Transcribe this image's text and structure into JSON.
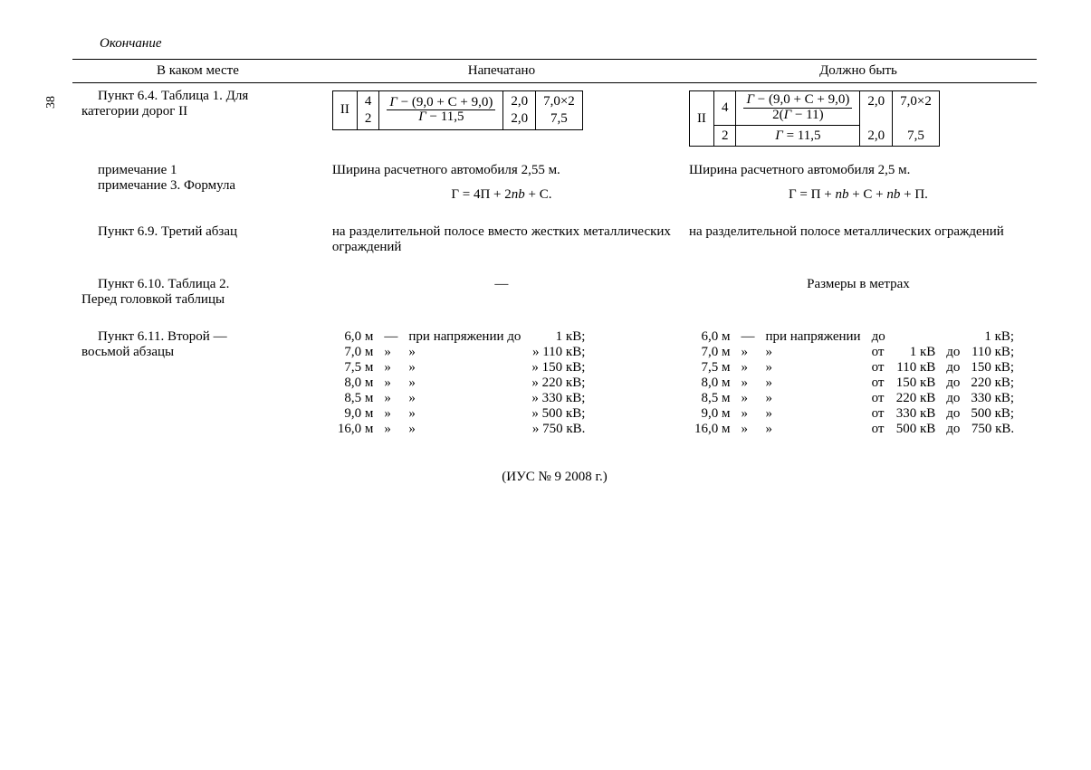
{
  "page_number": "38",
  "heading": "Окончание",
  "columns": {
    "where": "В каком месте",
    "printed": "Напечатано",
    "should": "Должно быть"
  },
  "row1": {
    "where_line1": "Пункт 6.4. Таблица 1. Для",
    "where_line2": "категории дорог II",
    "printed_mini": {
      "c1": "II",
      "c2t": "4",
      "c2b": "2",
      "frac_num": "Г − (9,0 + С + 9,0)",
      "frac_den": "Г − 11,5",
      "c4t": "2,0",
      "c4b": "2,0",
      "c5t": "7,0×2",
      "c5b": "7,5"
    },
    "should_mini": {
      "c1": "II",
      "c2t": "4",
      "c2b": "2",
      "frac_num": "Г − (9,0 + С + 9,0)",
      "frac_den": "2(Г − 11)",
      "r2_formula": "Г = 11,5",
      "c4t": "2,0",
      "c4b": "2,0",
      "c5t": "7,0×2",
      "c5b": "7,5"
    }
  },
  "row1b": {
    "where_l1": "примечание 1",
    "where_l2": "примечание 3. Формула",
    "printed_text": "Ширина расчетного автомобиля 2,55 м.",
    "printed_formula": "Г = 4П + 2nb + С.",
    "should_text": "Ширина расчетного автомобиля 2,5 м.",
    "should_formula": "Г = П + nb + С + nb + П."
  },
  "row2": {
    "where": "Пункт 6.9. Третий абзац",
    "printed": "на разделительной полосе вместо жест­ких металлических ограждений",
    "should": "на разделительной полосе металличес­ких ограждений"
  },
  "row3": {
    "where_l1": "Пункт 6.10. Таблица 2.",
    "where_l2": "Перед головкой таблицы",
    "printed": "—",
    "should": "Размеры в метрах"
  },
  "row4": {
    "where_l1": "Пункт 6.11. Второй —",
    "where_l2": "восьмой абзацы",
    "printed": [
      {
        "m": "6,0 м",
        "dash": "—",
        "pri": "при напряжении до",
        "v": "1 кВ;"
      },
      {
        "m": "7,0 м",
        "dash": "»",
        "pri": "»",
        "v": "» 110 кВ;"
      },
      {
        "m": "7,5 м",
        "dash": "»",
        "pri": "»",
        "v": "» 150 кВ;"
      },
      {
        "m": "8,0 м",
        "dash": "»",
        "pri": "»",
        "v": "» 220 кВ;"
      },
      {
        "m": "8,5 м",
        "dash": "»",
        "pri": "»",
        "v": "» 330 кВ;"
      },
      {
        "m": "9,0 м",
        "dash": "»",
        "pri": "»",
        "v": "» 500 кВ;"
      },
      {
        "m": "16,0 м",
        "dash": "»",
        "pri": "»",
        "v": "» 750 кВ."
      }
    ],
    "should": [
      {
        "m": "6,0 м",
        "dash": "—",
        "pri": "при напряжении",
        "ot": "до",
        "from": "",
        "to": "1 кВ;"
      },
      {
        "m": "7,0 м",
        "dash": "»",
        "pri": "»",
        "ot": "от",
        "from": "1 кВ",
        "do": "до",
        "to": "110 кВ;"
      },
      {
        "m": "7,5 м",
        "dash": "»",
        "pri": "»",
        "ot": "от",
        "from": "110 кВ",
        "do": "до",
        "to": "150 кВ;"
      },
      {
        "m": "8,0 м",
        "dash": "»",
        "pri": "»",
        "ot": "от",
        "from": "150 кВ",
        "do": "до",
        "to": "220 кВ;"
      },
      {
        "m": "8,5 м",
        "dash": "»",
        "pri": "»",
        "ot": "от",
        "from": "220 кВ",
        "do": "до",
        "to": "330 кВ;"
      },
      {
        "m": "9,0 м",
        "dash": "»",
        "pri": "»",
        "ot": "от",
        "from": "330 кВ",
        "do": "до",
        "to": "500 кВ;"
      },
      {
        "m": "16,0 м",
        "dash": "»",
        "pri": "»",
        "ot": "от",
        "from": "500 кВ",
        "do": "до",
        "to": "750 кВ."
      }
    ]
  },
  "footer": "(ИУС № 9  2008 г.)",
  "style": {
    "font_family": "Times New Roman",
    "body_fontsize_pt": 11,
    "border_color": "#000000",
    "background": "#ffffff"
  }
}
